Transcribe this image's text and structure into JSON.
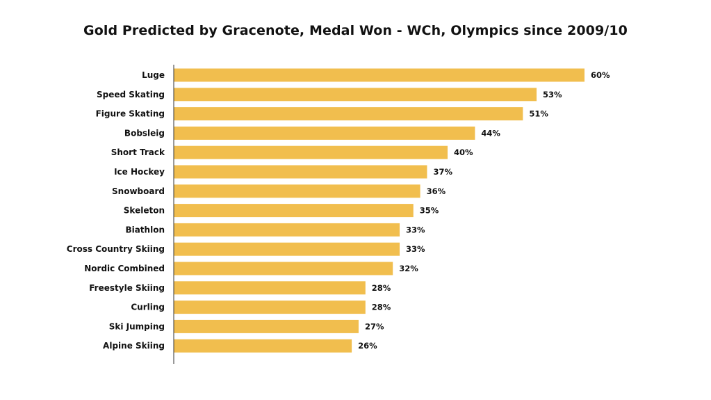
{
  "chart_data": {
    "type": "bar",
    "orientation": "horizontal",
    "title": "Gold Predicted by Gracenote, Medal Won - WCh, Olympics since 2009/10",
    "xlabel": "",
    "ylabel": "",
    "categories": [
      "Luge",
      "Speed Skating",
      "Figure Skating",
      "Bobsleig",
      "Short Track",
      "Ice Hockey",
      "Snowboard",
      "Skeleton",
      "Biathlon",
      "Cross Country Skiing",
      "Nordic Combined",
      "Freestyle Skiing",
      "Curling",
      "Ski Jumping",
      "Alpine Skiing"
    ],
    "values": [
      60,
      53,
      51,
      44,
      40,
      37,
      36,
      35,
      33,
      33,
      32,
      28,
      28,
      27,
      26
    ],
    "value_labels": [
      "60%",
      "53%",
      "51%",
      "44%",
      "40%",
      "37%",
      "36%",
      "35%",
      "33%",
      "33%",
      "32%",
      "28%",
      "28%",
      "27%",
      "26%"
    ],
    "value_unit": "%",
    "xlim": [
      0,
      60
    ],
    "grid": false,
    "legend": "none",
    "bar_color": "#F1BE4E",
    "axis_color": "#333333"
  }
}
